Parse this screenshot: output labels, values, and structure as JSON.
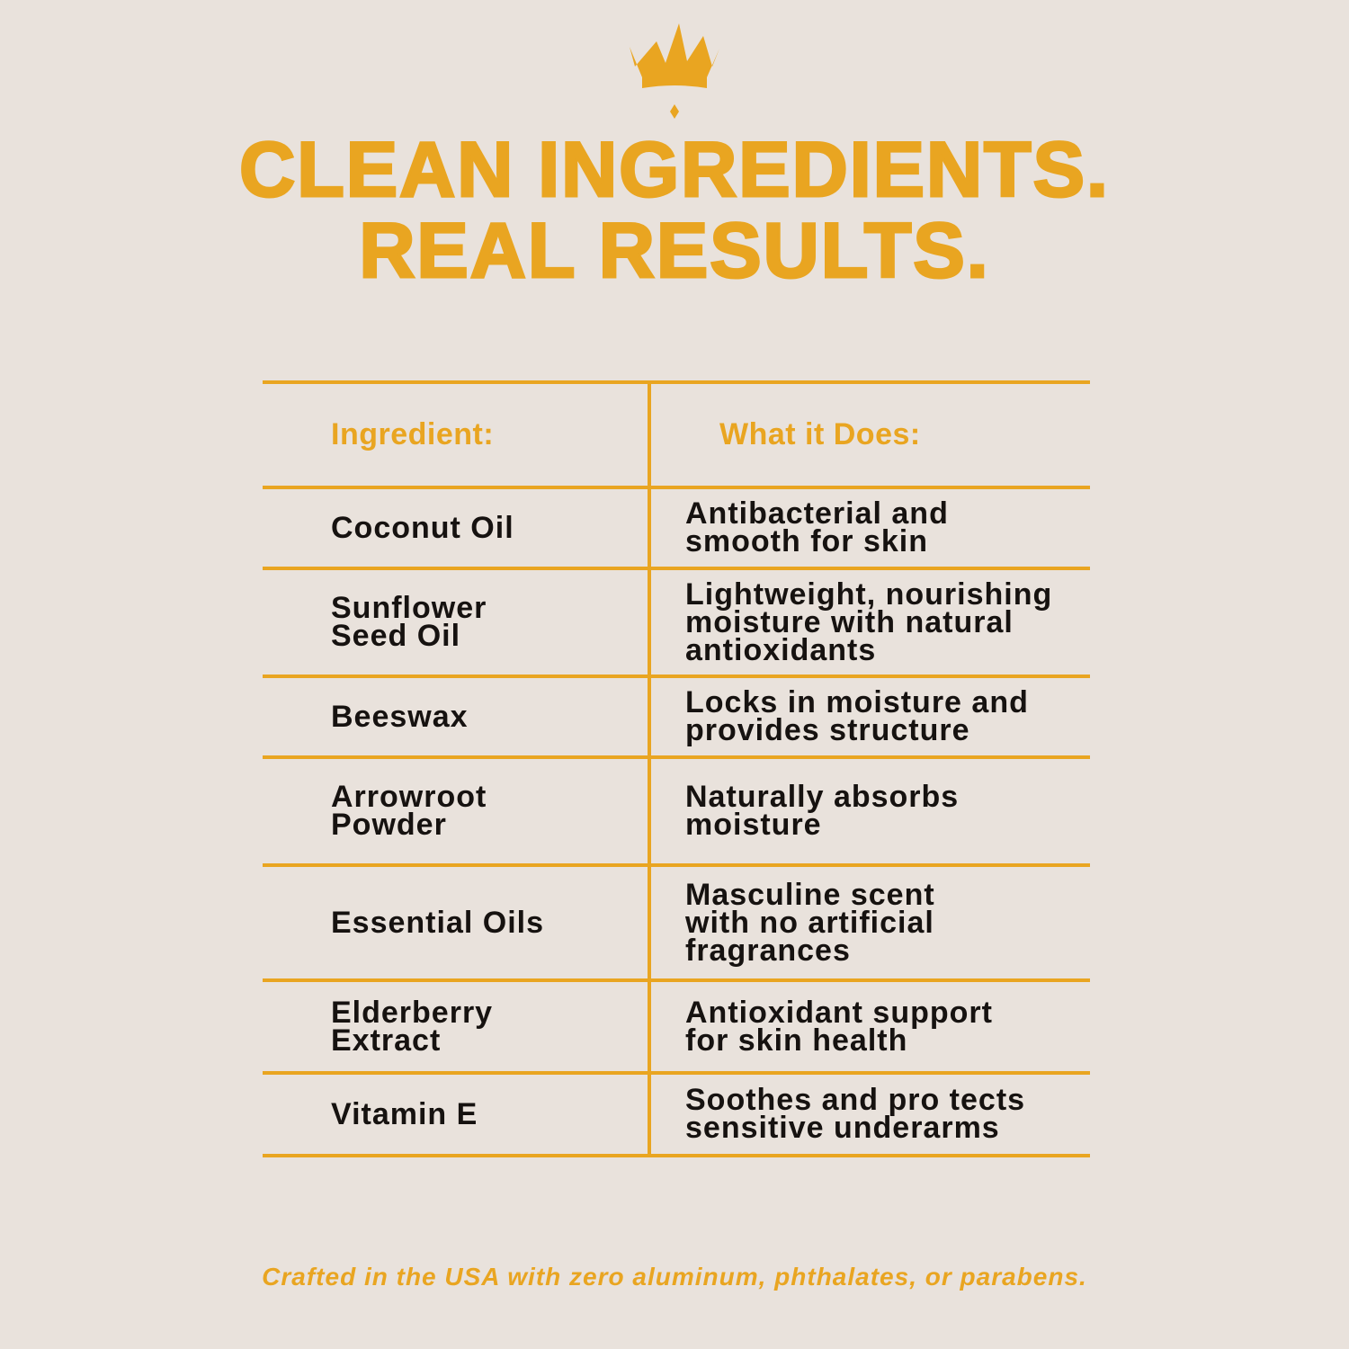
{
  "colors": {
    "background": "#e9e2dc",
    "accent": "#e9a521",
    "text": "#161210"
  },
  "logo": {
    "icon": "crown-icon"
  },
  "headline": {
    "line1": "CLEAN INGREDIENTS.",
    "line2": "REAL RESULTS."
  },
  "table": {
    "headers": [
      "Ingredient:",
      "What it Does:"
    ],
    "rows": [
      {
        "ingredient": "Coconut Oil",
        "description": "Antibacterial and\nsmooth for skin"
      },
      {
        "ingredient": "Sunflower\nSeed Oil",
        "description": "Lightweight, nourishing\nmoisture with natural\nantioxidants"
      },
      {
        "ingredient": "Beeswax",
        "description": "Locks in moisture and\nprovides structure"
      },
      {
        "ingredient": "Arrowroot\nPowder",
        "description": "Naturally absorbs\nmoisture"
      },
      {
        "ingredient": "Essential Oils",
        "description": "Masculine scent\nwith no artificial\nfragrances"
      },
      {
        "ingredient": "Elderberry\nExtract",
        "description": "Antioxidant support\nfor skin health"
      },
      {
        "ingredient": "Vitamin E",
        "description": "Soothes and pro tects\nsensitive underarms"
      }
    ]
  },
  "footer": "Crafted in the USA with zero aluminum, phthalates, or parabens."
}
